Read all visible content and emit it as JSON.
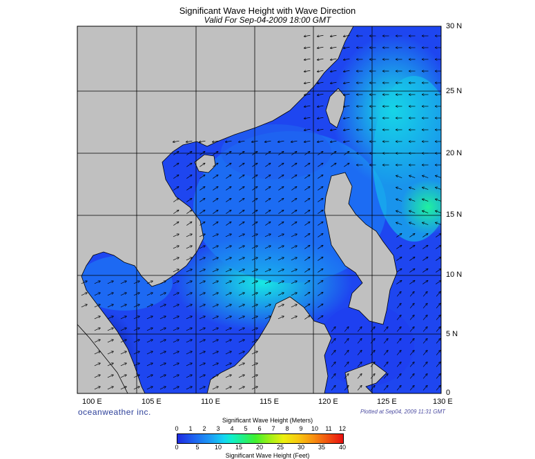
{
  "title": "Significant Wave Height with Wave Direction",
  "subtitle": "Valid For Sep-04-2009 18:00 GMT",
  "lat_labels": [
    "30 N",
    "25 N",
    "20 N",
    "15 N",
    "10 N",
    "5 N",
    "0"
  ],
  "lon_labels": [
    "100 E",
    "105 E",
    "110 E",
    "115 E",
    "120 E",
    "125 E",
    "130 E"
  ],
  "brand": "oceanweather inc.",
  "plotted": "Plotted at Sep04, 2009 11:31 GMT",
  "colorbar": {
    "meters_title": "Significant Wave Height (Meters)",
    "meters_ticks": [
      "0",
      "1",
      "2",
      "3",
      "4",
      "5",
      "6",
      "7",
      "8",
      "9",
      "10",
      "11",
      "12"
    ],
    "feet_title": "Significant Wave Height (Feet)",
    "feet_ticks": [
      "0",
      "5",
      "10",
      "15",
      "20",
      "25",
      "30",
      "35",
      "40"
    ]
  },
  "colors": {
    "land": "#c0c0c0",
    "ocean_low": "#1e3cf0",
    "ocean_mid": "#1c8cf5",
    "ocean_high": "#14e8e0",
    "arrow": "#000000"
  }
}
